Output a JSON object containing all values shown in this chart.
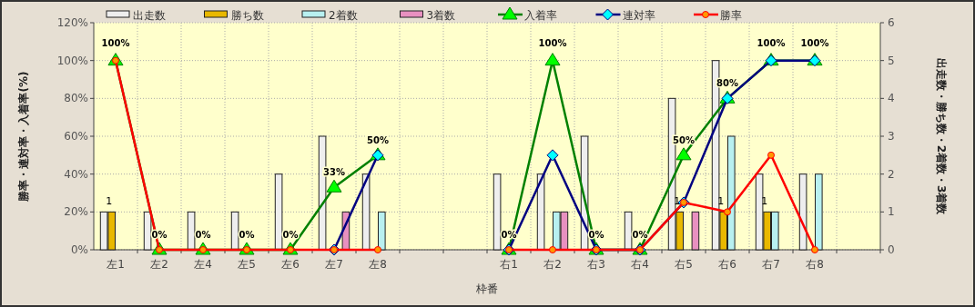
{
  "chart_data": {
    "type": "bar",
    "xlabel": "枠番",
    "ylabel": "勝率・連対率・入着率(%)",
    "y2label": "出走数・勝ち数・2着数・3着数",
    "categories": [
      "左1",
      "左2",
      "左4",
      "左5",
      "左6",
      "左7",
      "左8",
      null,
      null,
      "右1",
      "右2",
      "右3",
      "右4",
      "右5",
      "右6",
      "右7",
      "右8",
      null
    ],
    "ylim": [
      0,
      120
    ],
    "yticks": [
      {
        "value": 0,
        "label": "0%"
      },
      {
        "value": 20,
        "label": "20%"
      },
      {
        "value": 40,
        "label": "40%"
      },
      {
        "value": 60,
        "label": "60%"
      },
      {
        "value": 80,
        "label": "80%"
      },
      {
        "value": 100,
        "label": "100%"
      },
      {
        "value": 120,
        "label": "120%"
      }
    ],
    "y2lim": [
      0,
      6
    ],
    "y2ticks": [
      0,
      1,
      2,
      3,
      4,
      5,
      6
    ],
    "grid": true,
    "legend": "top",
    "series": [
      {
        "name": "出走数",
        "axis": "y2",
        "color": "#eeeeee",
        "values": [
          1,
          1,
          1,
          1,
          2,
          3,
          2,
          null,
          null,
          2,
          2,
          3,
          1,
          4,
          5,
          2,
          2,
          null
        ]
      },
      {
        "name": "勝ち数",
        "axis": "y2",
        "color": "#e8b800",
        "values": [
          1,
          0,
          0,
          0,
          0,
          0,
          0,
          null,
          null,
          0,
          0,
          0,
          0,
          1,
          1,
          1,
          0,
          null
        ],
        "value_labels": [
          "1",
          null,
          null,
          null,
          null,
          null,
          null,
          null,
          null,
          null,
          null,
          null,
          null,
          "1",
          "1",
          "1",
          null,
          null
        ]
      },
      {
        "name": "2着数",
        "axis": "y2",
        "color": "#b8f0f0",
        "values": [
          0,
          0,
          0,
          0,
          0,
          0,
          1,
          null,
          null,
          0,
          1,
          0,
          0,
          0,
          3,
          1,
          2,
          null
        ]
      },
      {
        "name": "3着数",
        "axis": "y2",
        "color": "#e890c0",
        "values": [
          0,
          0,
          0,
          0,
          0,
          1,
          0,
          null,
          null,
          0,
          1,
          0,
          0,
          1,
          0,
          0,
          0,
          null
        ]
      },
      {
        "name": "入着率",
        "type": "line",
        "color": "#008000",
        "marker": "triangle",
        "values": [
          100,
          0,
          0,
          0,
          0,
          33,
          50,
          null,
          null,
          0,
          100,
          0,
          0,
          50,
          80,
          100,
          100,
          null
        ],
        "value_labels": [
          "100%",
          "0%",
          "0%",
          "0%",
          "0%",
          "33%",
          "50%",
          null,
          null,
          "0%",
          "100%",
          "0%",
          "0%",
          "50%",
          "80%",
          "100%",
          "100%",
          null
        ]
      },
      {
        "name": "連対率",
        "type": "line",
        "color": "#000080",
        "marker": "diamond",
        "values": [
          null,
          null,
          null,
          null,
          null,
          0,
          50,
          null,
          null,
          0,
          50,
          0,
          0,
          25,
          80,
          100,
          100,
          null
        ]
      },
      {
        "name": "勝率",
        "type": "line",
        "color": "#ff0000",
        "marker": "circle",
        "values": [
          100,
          0,
          0,
          0,
          0,
          0,
          0,
          null,
          null,
          0,
          0,
          0,
          0,
          25,
          20,
          50,
          0,
          null
        ]
      }
    ]
  }
}
